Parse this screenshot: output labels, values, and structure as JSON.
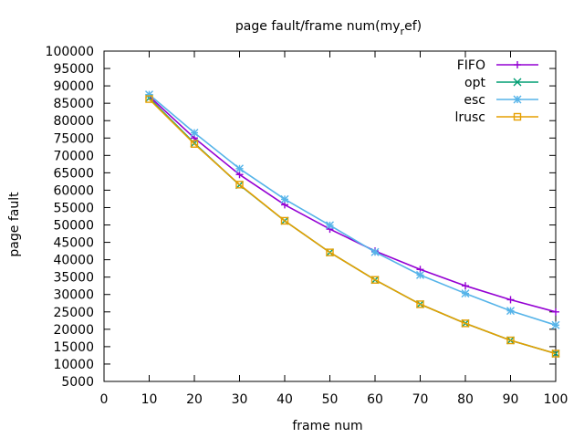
{
  "chart_data": {
    "type": "line",
    "title_main": "page fault/frame num(my",
    "title_sub": "r",
    "title_tail": "ef)",
    "xlabel": "frame num",
    "ylabel": "page fault",
    "xlim": [
      0,
      100
    ],
    "ylim": [
      5000,
      100000
    ],
    "x_ticks": [
      0,
      10,
      20,
      30,
      40,
      50,
      60,
      70,
      80,
      90,
      100
    ],
    "y_ticks": [
      5000,
      10000,
      15000,
      20000,
      25000,
      30000,
      35000,
      40000,
      45000,
      50000,
      55000,
      60000,
      65000,
      70000,
      75000,
      80000,
      85000,
      90000,
      95000,
      100000
    ],
    "grid": false,
    "legend_position": "top-right",
    "x": [
      10,
      20,
      30,
      40,
      50,
      60,
      70,
      80,
      90,
      100
    ],
    "series": [
      {
        "name": "FIFO",
        "color": "#9400d3",
        "marker": "plus",
        "values": [
          87000,
          75000,
          64500,
          55800,
          48800,
          42500,
          37200,
          32500,
          28500,
          25000
        ]
      },
      {
        "name": "opt",
        "color": "#009e73",
        "marker": "cross",
        "values": [
          86500,
          73500,
          61500,
          51200,
          42100,
          34200,
          27200,
          21700,
          16800,
          13000
        ]
      },
      {
        "name": "esc",
        "color": "#56b4e9",
        "marker": "star",
        "values": [
          87500,
          76500,
          66200,
          57400,
          49900,
          42200,
          35600,
          30300,
          25300,
          21200
        ]
      },
      {
        "name": "lrusc",
        "color": "#e69f00",
        "marker": "square",
        "values": [
          86200,
          73300,
          61600,
          51200,
          42100,
          34200,
          27200,
          21700,
          16800,
          13000
        ]
      }
    ]
  }
}
